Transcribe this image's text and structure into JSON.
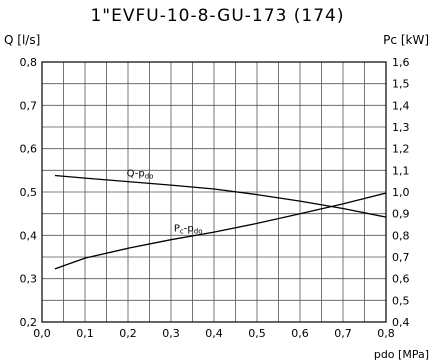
{
  "chart_data": {
    "type": "line",
    "title": "1\"EVFU-10-8-GU-173 (174)",
    "xlabel": "pdo [MPa]",
    "ylabel_left": "Q [l/s]",
    "ylabel_right": "Pc [kW]",
    "xlim": [
      0.0,
      0.8
    ],
    "ylim_left": [
      0.2,
      0.8
    ],
    "ylim_right": [
      0.4,
      1.6
    ],
    "x_ticks": [
      "0,0",
      "0,1",
      "0,2",
      "0,3",
      "0,4",
      "0,5",
      "0,6",
      "0,7",
      "0,8"
    ],
    "y_left_ticks": [
      "0,2",
      "0,3",
      "0,4",
      "0,5",
      "0,6",
      "0,7",
      "0,8"
    ],
    "y_right_ticks": [
      "0,4",
      "0,5",
      "0,6",
      "0,7",
      "0,8",
      "0,9",
      "1,0",
      "1,1",
      "1,2",
      "1,3",
      "1,4",
      "1,5",
      "1,6"
    ],
    "grid": true,
    "series": [
      {
        "name": "Q-pdo",
        "axis": "left",
        "x": [
          0.03,
          0.1,
          0.2,
          0.3,
          0.4,
          0.5,
          0.6,
          0.7,
          0.8
        ],
        "y": [
          0.538,
          0.532,
          0.524,
          0.516,
          0.507,
          0.494,
          0.479,
          0.462,
          0.442
        ]
      },
      {
        "name": "Pc-pdo",
        "axis": "right",
        "x": [
          0.03,
          0.1,
          0.2,
          0.3,
          0.4,
          0.5,
          0.6,
          0.7,
          0.8
        ],
        "y": [
          0.645,
          0.695,
          0.74,
          0.78,
          0.815,
          0.855,
          0.9,
          0.945,
          0.995
        ]
      }
    ],
    "series_labels": [
      {
        "text": "Q-p",
        "sub": "do",
        "series": 0
      },
      {
        "text": "P",
        "sub": "c",
        "text2": "-p",
        "sub2": "do",
        "series": 1
      }
    ]
  }
}
